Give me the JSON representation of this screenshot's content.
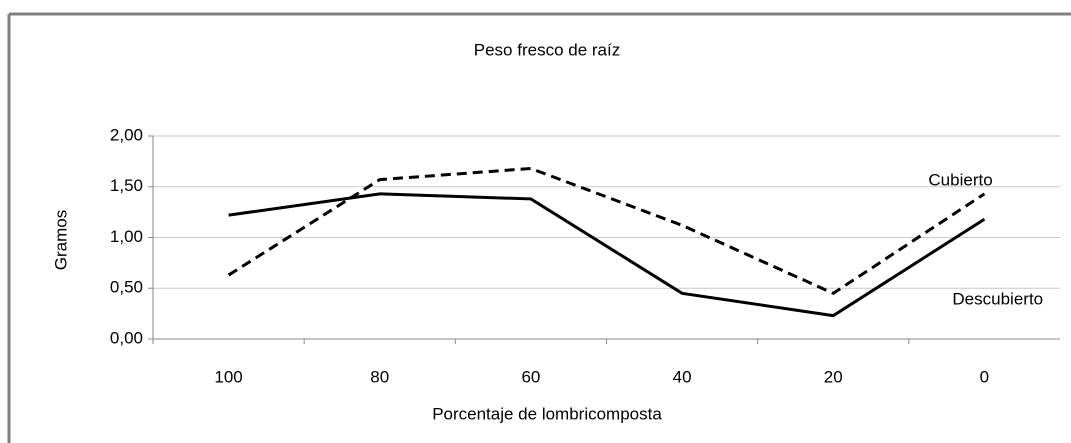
{
  "chart_data": {
    "type": "line",
    "title": "Peso fresco de raíz",
    "x_label": "Porcentaje de lombricomposta",
    "y_label": "Gramos",
    "categories": [
      "100",
      "80",
      "60",
      "40",
      "20",
      "0"
    ],
    "series": [
      {
        "name": "Descubierto",
        "color": "#000000",
        "values": [
          1.22,
          1.43,
          1.38,
          0.45,
          0.23,
          1.18
        ]
      },
      {
        "name": "Cubierto",
        "color": "#000000",
        "values": [
          0.63,
          1.57,
          1.68,
          1.12,
          0.45,
          1.43
        ]
      }
    ],
    "ylim": [
      0,
      2
    ],
    "yticks": [
      {
        "value": 0,
        "label": "0,00"
      },
      {
        "value": 0.5,
        "label": "0,50"
      },
      {
        "value": 1,
        "label": "1,00"
      },
      {
        "value": 1.5,
        "label": "1,50"
      },
      {
        "value": 2,
        "label": "2,00"
      }
    ],
    "grid": true
  }
}
